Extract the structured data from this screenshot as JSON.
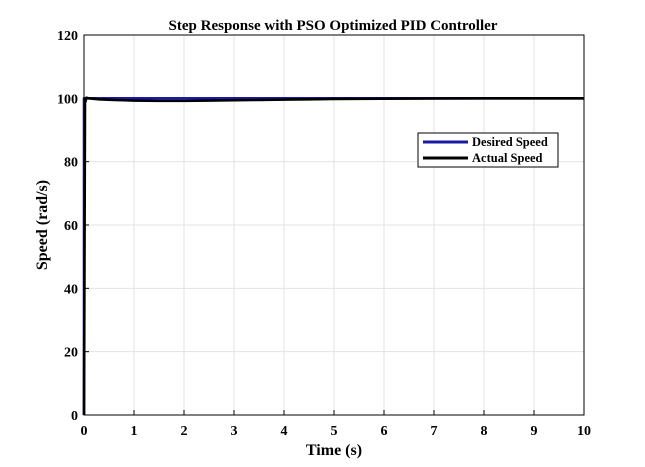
{
  "chart_data": {
    "type": "line",
    "title": "Step Response with PSO Optimized PID Controller",
    "xlabel": "Time (s)",
    "ylabel": "Speed (rad/s)",
    "xlim": [
      0,
      10
    ],
    "ylim": [
      0,
      120
    ],
    "xticks": [
      "0",
      "1",
      "2",
      "3",
      "4",
      "5",
      "6",
      "7",
      "8",
      "9",
      "10"
    ],
    "yticks": [
      "0",
      "20",
      "40",
      "60",
      "80",
      "100",
      "120"
    ],
    "grid": true,
    "legend_position": "right",
    "series": [
      {
        "name": "Desired Speed",
        "color": "#1a1aa6",
        "x": [
          0,
          0,
          10
        ],
        "y": [
          0,
          100,
          100
        ]
      },
      {
        "name": "Actual Speed",
        "color": "#000000",
        "x": [
          0,
          0.02,
          0.05,
          0.1,
          0.3,
          0.6,
          1.0,
          1.5,
          2.0,
          2.5,
          3.0,
          3.5,
          4.0,
          4.5,
          5.0,
          5.5,
          6.0,
          7.0,
          8.0,
          9.0,
          10.0
        ],
        "y": [
          0,
          98.5,
          100.2,
          100.0,
          99.7,
          99.5,
          99.3,
          99.2,
          99.2,
          99.3,
          99.4,
          99.5,
          99.6,
          99.7,
          99.8,
          99.85,
          99.9,
          99.95,
          100.0,
          100.0,
          100.0
        ]
      }
    ]
  }
}
